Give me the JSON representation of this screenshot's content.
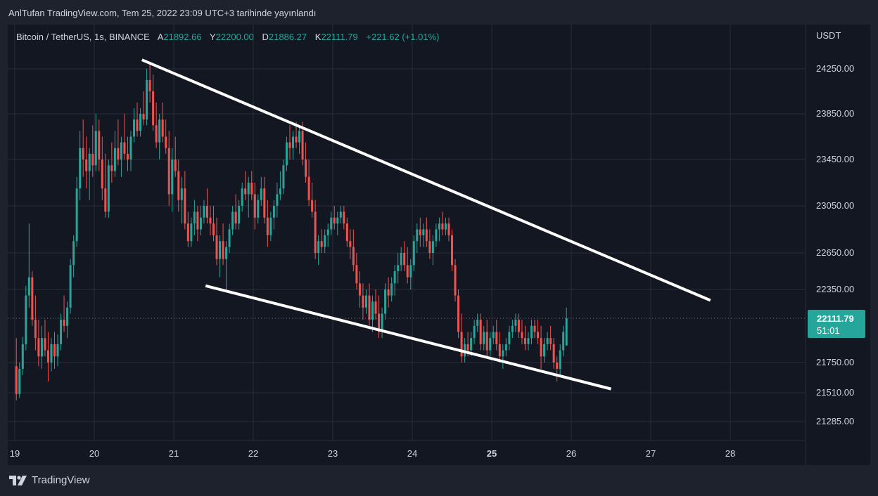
{
  "publish_note": "AnlTufan TradingView.com, Tem 25, 2022 23:09 UTC+3 tarihinde yayınlandı",
  "legend": {
    "symbol": "Bitcoin / TetherUS, 1s, BINANCE",
    "open_label": "A",
    "open": "21892.66",
    "high_label": "Y",
    "high": "22200.00",
    "low_label": "D",
    "low": "21886.27",
    "close_label": "K",
    "close": "22111.79",
    "change": "+221.62 (+1.01%)"
  },
  "brand": "TradingView",
  "colors": {
    "up": "#26a69a",
    "down": "#ef5350",
    "background": "#131722",
    "grid": "#2a2e39",
    "trendline": "#ffffff"
  },
  "chart_data": {
    "type": "candlestick",
    "currency": "USDT",
    "y_ticks": [
      "24250.00",
      "23850.00",
      "23450.00",
      "23050.00",
      "22650.00",
      "22350.00",
      "21750.00",
      "21510.00",
      "21285.00"
    ],
    "x_ticks": [
      "19",
      "20",
      "21",
      "22",
      "23",
      "24",
      "25",
      "26",
      "27",
      "28"
    ],
    "x_bold": "25",
    "price_label": {
      "value": "22111.79",
      "countdown": "51:01"
    },
    "current_price": 22111.79,
    "trendlines": [
      {
        "name": "upper",
        "from": [
          20.6,
          24330
        ],
        "to": [
          27.75,
          22260
        ]
      },
      {
        "name": "lower",
        "from": [
          21.4,
          22380
        ],
        "to": [
          26.5,
          21540
        ]
      }
    ],
    "candles": [
      [
        19.02,
        21720,
        21950,
        21450,
        21500
      ],
      [
        19.06,
        21500,
        21750,
        21470,
        21700
      ],
      [
        19.1,
        21700,
        21960,
        21650,
        21900
      ],
      [
        19.14,
        21900,
        22380,
        21850,
        22300
      ],
      [
        19.18,
        22300,
        22900,
        22200,
        22450
      ],
      [
        19.22,
        22450,
        22500,
        22050,
        22100
      ],
      [
        19.26,
        22100,
        22300,
        21850,
        21950
      ],
      [
        19.3,
        21950,
        22100,
        21720,
        21800
      ],
      [
        19.34,
        21800,
        22050,
        21700,
        21950
      ],
      [
        19.38,
        21950,
        22100,
        21800,
        21850
      ],
      [
        19.42,
        21850,
        22000,
        21600,
        21750
      ],
      [
        19.46,
        21750,
        21950,
        21680,
        21900
      ],
      [
        19.5,
        21900,
        22000,
        21700,
        21800
      ],
      [
        19.54,
        21800,
        21980,
        21720,
        21900
      ],
      [
        19.58,
        21900,
        22150,
        21850,
        22100
      ],
      [
        19.62,
        22100,
        22300,
        22000,
        22050
      ],
      [
        19.66,
        22050,
        22250,
        21950,
        22200
      ],
      [
        19.7,
        22200,
        22600,
        22150,
        22550
      ],
      [
        19.74,
        22550,
        22800,
        22450,
        22750
      ],
      [
        19.78,
        22750,
        23300,
        22700,
        23200
      ],
      [
        19.82,
        23200,
        23700,
        23100,
        23550
      ],
      [
        19.86,
        23550,
        23800,
        23300,
        23450
      ],
      [
        19.9,
        23450,
        23650,
        23200,
        23350
      ],
      [
        19.94,
        23350,
        23550,
        23100,
        23500
      ],
      [
        19.98,
        23500,
        23750,
        23300,
        23400
      ],
      [
        20.02,
        23400,
        23850,
        23350,
        23700
      ],
      [
        20.06,
        23700,
        23800,
        23350,
        23450
      ],
      [
        20.1,
        23450,
        23650,
        23100,
        23200
      ],
      [
        20.14,
        23200,
        23500,
        22950,
        23000
      ],
      [
        20.18,
        23000,
        23450,
        22950,
        23400
      ],
      [
        20.22,
        23400,
        23600,
        23250,
        23350
      ],
      [
        20.26,
        23350,
        23700,
        23300,
        23550
      ],
      [
        20.3,
        23550,
        23800,
        23400,
        23450
      ],
      [
        20.34,
        23450,
        23650,
        23300,
        23600
      ],
      [
        20.38,
        23600,
        23850,
        23450,
        23500
      ],
      [
        20.42,
        23500,
        23650,
        23350,
        23450
      ],
      [
        20.46,
        23450,
        23700,
        23350,
        23650
      ],
      [
        20.5,
        23650,
        23900,
        23600,
        23800
      ],
      [
        20.54,
        23800,
        23950,
        23650,
        23700
      ],
      [
        20.58,
        23700,
        23900,
        23650,
        23850
      ],
      [
        20.62,
        23850,
        24050,
        23750,
        23800
      ],
      [
        20.66,
        23800,
        24250,
        23750,
        24150
      ],
      [
        20.7,
        24150,
        24300,
        23950,
        24050
      ],
      [
        20.74,
        24050,
        24200,
        23700,
        23750
      ],
      [
        20.78,
        23750,
        23950,
        23550,
        23600
      ],
      [
        20.82,
        23600,
        23850,
        23450,
        23800
      ],
      [
        20.86,
        23800,
        23950,
        23600,
        23650
      ],
      [
        20.9,
        23650,
        23800,
        23500,
        23550
      ],
      [
        20.94,
        23550,
        23700,
        23050,
        23150
      ],
      [
        20.98,
        23150,
        23550,
        23000,
        23450
      ],
      [
        21.02,
        23450,
        23650,
        23300,
        23350
      ],
      [
        21.06,
        23350,
        23450,
        23000,
        23100
      ],
      [
        21.1,
        23100,
        23300,
        22900,
        23200
      ],
      [
        21.14,
        23200,
        23350,
        22850,
        22900
      ],
      [
        21.18,
        22900,
        23000,
        22700,
        22750
      ],
      [
        21.22,
        22750,
        22950,
        22700,
        22900
      ],
      [
        21.26,
        22900,
        23100,
        22800,
        23000
      ],
      [
        21.3,
        23000,
        23050,
        22750,
        22850
      ],
      [
        21.34,
        22850,
        23050,
        22800,
        22950
      ],
      [
        21.38,
        22950,
        23100,
        22900,
        23050
      ],
      [
        21.42,
        23050,
        23200,
        22900,
        22950
      ],
      [
        21.46,
        22950,
        23050,
        22800,
        22900
      ],
      [
        21.5,
        22900,
        23050,
        22750,
        22800
      ],
      [
        21.54,
        22800,
        22950,
        22550,
        22600
      ],
      [
        21.58,
        22600,
        22800,
        22450,
        22750
      ],
      [
        21.62,
        22750,
        22900,
        22550,
        22600
      ],
      [
        21.66,
        22600,
        22750,
        22350,
        22700
      ],
      [
        21.7,
        22700,
        22900,
        22650,
        22850
      ],
      [
        21.74,
        22850,
        23050,
        22800,
        23000
      ],
      [
        21.78,
        23000,
        23150,
        22850,
        22900
      ],
      [
        21.82,
        22900,
        23100,
        22850,
        23050
      ],
      [
        21.86,
        23050,
        23250,
        23000,
        23200
      ],
      [
        21.9,
        23200,
        23350,
        23100,
        23150
      ],
      [
        21.94,
        23150,
        23300,
        22950,
        23250
      ],
      [
        21.98,
        23250,
        23350,
        23100,
        23150
      ],
      [
        22.02,
        23150,
        23250,
        22850,
        22950
      ],
      [
        22.06,
        22950,
        23150,
        22900,
        23100
      ],
      [
        22.1,
        23100,
        23300,
        23050,
        23200
      ],
      [
        22.14,
        23200,
        23300,
        22900,
        22950
      ],
      [
        22.18,
        22950,
        23100,
        22700,
        22800
      ],
      [
        22.22,
        22800,
        23000,
        22750,
        22950
      ],
      [
        22.26,
        22950,
        23100,
        22850,
        23050
      ],
      [
        22.3,
        23050,
        23250,
        22950,
        23150
      ],
      [
        22.34,
        23150,
        23350,
        23100,
        23200
      ],
      [
        22.38,
        23200,
        23450,
        23150,
        23400
      ],
      [
        22.42,
        23400,
        23650,
        23350,
        23600
      ],
      [
        22.46,
        23600,
        23750,
        23450,
        23550
      ],
      [
        22.5,
        23550,
        23700,
        23450,
        23650
      ],
      [
        22.54,
        23650,
        23780,
        23550,
        23600
      ],
      [
        22.58,
        23600,
        23750,
        23500,
        23700
      ],
      [
        22.62,
        23700,
        23780,
        23400,
        23450
      ],
      [
        22.66,
        23450,
        23600,
        23250,
        23300
      ],
      [
        22.7,
        23300,
        23450,
        23050,
        23100
      ],
      [
        22.74,
        23100,
        23250,
        22950,
        23000
      ],
      [
        22.78,
        23000,
        23100,
        22600,
        22650
      ],
      [
        22.82,
        22650,
        22800,
        22550,
        22750
      ],
      [
        22.86,
        22750,
        22850,
        22650,
        22700
      ],
      [
        22.9,
        22700,
        22850,
        22650,
        22800
      ],
      [
        22.94,
        22800,
        22900,
        22700,
        22850
      ],
      [
        22.98,
        22850,
        23000,
        22800,
        22950
      ],
      [
        23.02,
        22950,
        23050,
        22850,
        22900
      ],
      [
        23.06,
        22900,
        23000,
        22800,
        22950
      ],
      [
        23.1,
        22950,
        23050,
        22900,
        23000
      ],
      [
        23.14,
        23000,
        23050,
        22850,
        22900
      ],
      [
        23.18,
        22900,
        22950,
        22700,
        22750
      ],
      [
        23.22,
        22750,
        22850,
        22600,
        22700
      ],
      [
        23.26,
        22700,
        22850,
        22500,
        22550
      ],
      [
        23.3,
        22550,
        22650,
        22350,
        22400
      ],
      [
        23.34,
        22400,
        22500,
        22200,
        22300
      ],
      [
        23.38,
        22300,
        22400,
        22100,
        22200
      ],
      [
        23.42,
        22200,
        22350,
        22150,
        22300
      ],
      [
        23.46,
        22300,
        22400,
        22050,
        22100
      ],
      [
        23.5,
        22100,
        22300,
        22000,
        22250
      ],
      [
        23.54,
        22250,
        22350,
        22100,
        22150
      ],
      [
        23.58,
        22150,
        22300,
        21950,
        22000
      ],
      [
        23.62,
        22000,
        22200,
        21950,
        22150
      ],
      [
        23.66,
        22150,
        22400,
        22100,
        22350
      ],
      [
        23.7,
        22350,
        22450,
        22200,
        22300
      ],
      [
        23.74,
        22300,
        22450,
        22250,
        22400
      ],
      [
        23.78,
        22400,
        22550,
        22300,
        22500
      ],
      [
        23.82,
        22500,
        22650,
        22400,
        22550
      ],
      [
        23.86,
        22550,
        22700,
        22500,
        22650
      ],
      [
        23.9,
        22650,
        22750,
        22500,
        22550
      ],
      [
        23.94,
        22550,
        22700,
        22400,
        22450
      ],
      [
        23.98,
        22450,
        22600,
        22350,
        22550
      ],
      [
        24.02,
        22550,
        22800,
        22500,
        22750
      ],
      [
        24.06,
        22750,
        22900,
        22650,
        22850
      ],
      [
        24.1,
        22850,
        22950,
        22700,
        22800
      ],
      [
        24.14,
        22800,
        22900,
        22700,
        22850
      ],
      [
        24.18,
        22850,
        22950,
        22700,
        22750
      ],
      [
        24.22,
        22750,
        22850,
        22600,
        22650
      ],
      [
        24.26,
        22650,
        22800,
        22550,
        22750
      ],
      [
        24.3,
        22750,
        22900,
        22700,
        22850
      ],
      [
        24.34,
        22850,
        22950,
        22750,
        22900
      ],
      [
        24.38,
        22900,
        23000,
        22800,
        22850
      ],
      [
        24.42,
        22850,
        22950,
        22800,
        22900
      ],
      [
        24.46,
        22900,
        22950,
        22750,
        22800
      ],
      [
        24.5,
        22800,
        22850,
        22500,
        22550
      ],
      [
        24.54,
        22550,
        22600,
        22250,
        22300
      ],
      [
        24.58,
        22300,
        22350,
        21950,
        22000
      ],
      [
        24.62,
        22000,
        22150,
        21750,
        21800
      ],
      [
        24.66,
        21800,
        21950,
        21750,
        21900
      ],
      [
        24.7,
        21900,
        22000,
        21800,
        21850
      ],
      [
        24.74,
        21850,
        22000,
        21800,
        21950
      ],
      [
        24.78,
        21950,
        22100,
        21900,
        22050
      ],
      [
        24.82,
        22050,
        22150,
        22000,
        22100
      ],
      [
        24.86,
        22100,
        22150,
        21850,
        21900
      ],
      [
        24.9,
        21900,
        22050,
        21850,
        22000
      ],
      [
        24.94,
        22000,
        22100,
        21800,
        21850
      ],
      [
        24.98,
        21850,
        22000,
        21800,
        21950
      ],
      [
        25.02,
        21950,
        22050,
        21900,
        22000
      ],
      [
        25.06,
        22000,
        22100,
        21850,
        21900
      ],
      [
        25.1,
        21900,
        22000,
        21750,
        21800
      ],
      [
        25.14,
        21800,
        21900,
        21700,
        21850
      ],
      [
        25.18,
        21850,
        21950,
        21800,
        21900
      ],
      [
        25.22,
        21900,
        22050,
        21850,
        22000
      ],
      [
        25.26,
        22000,
        22100,
        21950,
        22050
      ],
      [
        25.3,
        22050,
        22150,
        22000,
        22100
      ],
      [
        25.34,
        22100,
        22150,
        21950,
        22000
      ],
      [
        25.38,
        22000,
        22100,
        21900,
        21950
      ],
      [
        25.42,
        21950,
        22050,
        21850,
        21900
      ],
      [
        25.46,
        21900,
        22000,
        21850,
        21950
      ],
      [
        25.5,
        21950,
        22100,
        21900,
        22050
      ],
      [
        25.54,
        22050,
        22100,
        21950,
        22000
      ],
      [
        25.58,
        22000,
        22100,
        21900,
        21950
      ],
      [
        25.62,
        21950,
        22050,
        21700,
        21800
      ],
      [
        25.66,
        21800,
        21950,
        21750,
        21900
      ],
      [
        25.7,
        21900,
        22000,
        21850,
        21950
      ],
      [
        25.74,
        21950,
        22050,
        21850,
        21900
      ],
      [
        25.78,
        21900,
        21950,
        21700,
        21750
      ],
      [
        25.82,
        21750,
        21800,
        21600,
        21700
      ],
      [
        25.86,
        21700,
        21900,
        21650,
        21850
      ],
      [
        25.9,
        21850,
        22050,
        21800,
        22000
      ],
      [
        25.94,
        21890,
        22200,
        21886,
        22111
      ]
    ]
  }
}
